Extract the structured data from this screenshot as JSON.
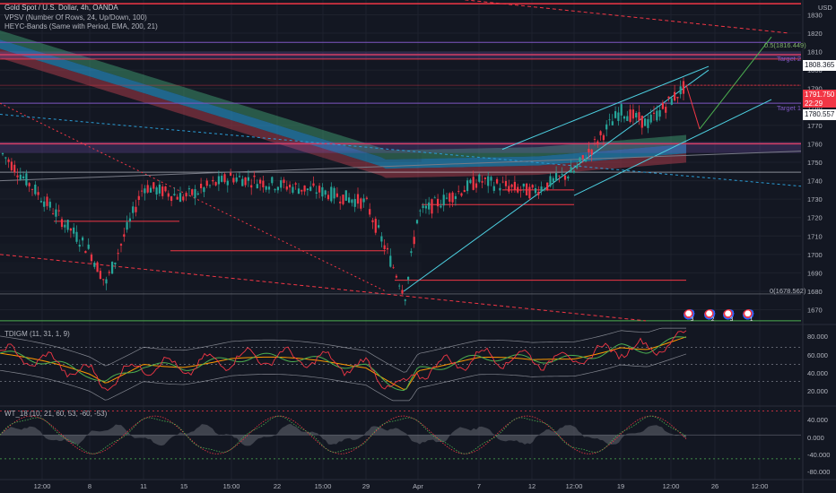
{
  "header": {
    "symbol_line": "Gold Spot / U.S. Dollar, 4h, OANDA",
    "indicator_1": "VPSV (Number Of Rows, 24, Up/Down, 100)",
    "indicator_2": "HEYC-Bands (Same with Period, EMA, 200, 21)",
    "currency": "USD"
  },
  "oscillators": {
    "tdigm_label": "TDIGM (11, 31, 1, 9)",
    "wt_label": "WT_18 (10, 21, 60, 53, -60, -53)"
  },
  "price_badges": [
    {
      "text": "1808.365",
      "bg": "#ffffff",
      "fg": "#131722"
    },
    {
      "text": "1791.750",
      "bg": "#f23645",
      "fg": "#ffffff"
    },
    {
      "text": "1780.557",
      "bg": "#ffffff",
      "fg": "#131722"
    }
  ],
  "countdown": "22:29",
  "annotations": {
    "fib_top": "0.5(1816.449)",
    "fib_bottom": "0(1678.562)",
    "target_2": "Target 2",
    "target_1": "Target 1"
  },
  "osc1_scale": [
    "80.000",
    "60.000",
    "40.000",
    "20.000"
  ],
  "osc2_scale": [
    "40.000",
    "0.000",
    "-40.000",
    "-80.000"
  ],
  "event_markers": [
    "3",
    "2",
    "3",
    "1"
  ],
  "colors": {
    "background": "#131722",
    "bull": "#26a69a",
    "bear": "#f23645",
    "band_green": "#3c8f6a",
    "band_blue": "#2a9bd3",
    "band_red": "#a63a48",
    "level_line": "#f23645"
  },
  "chart_data": {
    "type": "candlestick",
    "symbol": "Gold Spot / U.S. Dollar",
    "interval": "4h",
    "ylim": [
      1662,
      1838
    ],
    "y_ticks": [
      1670,
      1680,
      1690,
      1700,
      1710,
      1720,
      1730,
      1740,
      1750,
      1760,
      1770,
      1780,
      1790,
      1800,
      1810,
      1820,
      1830
    ],
    "x_ticks": [
      "12:00",
      "8",
      "11",
      "15",
      "15:00",
      "22",
      "15:00",
      "29",
      "Apr",
      "7",
      "12",
      "12:00",
      "19",
      "12:00",
      "26",
      "12:00"
    ],
    "close_path": [
      {
        "label": "start",
        "value": 1756
      },
      {
        "label": "8",
        "value": 1702
      },
      {
        "label": "mid-8",
        "value": 1684
      },
      {
        "label": "11",
        "value": 1737
      },
      {
        "label": "15",
        "value": 1731
      },
      {
        "label": "15:00",
        "value": 1742
      },
      {
        "label": "22",
        "value": 1738
      },
      {
        "label": "15:00",
        "value": 1734
      },
      {
        "label": "29",
        "value": 1728
      },
      {
        "label": "low",
        "value": 1678
      },
      {
        "label": "Apr",
        "value": 1722
      },
      {
        "label": "7",
        "value": 1740
      },
      {
        "label": "12",
        "value": 1734
      },
      {
        "label": "12:00",
        "value": 1745
      },
      {
        "label": "19",
        "value": 1778
      },
      {
        "label": "12:00",
        "value": 1771
      },
      {
        "label": "last",
        "value": 1791.75
      }
    ],
    "horizontal_levels": [
      1836,
      1808.365,
      1806,
      1791.75,
      1760,
      1744.6,
      1735,
      1727,
      1718,
      1702,
      1686,
      1682,
      1678.562
    ],
    "current_price": 1791.75,
    "fib_levels": [
      {
        "ratio": 0.5,
        "price": 1816.449
      },
      {
        "ratio": 0,
        "price": 1678.562
      }
    ],
    "targets": [
      {
        "name": "Target 2",
        "price": 1815
      },
      {
        "name": "Target 1",
        "price": 1783
      }
    ],
    "tdigm": {
      "ylim": [
        10,
        90
      ],
      "levels": [
        68,
        50,
        32
      ],
      "ticks": [
        80,
        60,
        40,
        20
      ]
    },
    "wt": {
      "ylim": [
        -95,
        60
      ],
      "ticks": [
        40,
        0,
        -40,
        -80
      ],
      "ob": 53,
      "os": -53
    }
  }
}
